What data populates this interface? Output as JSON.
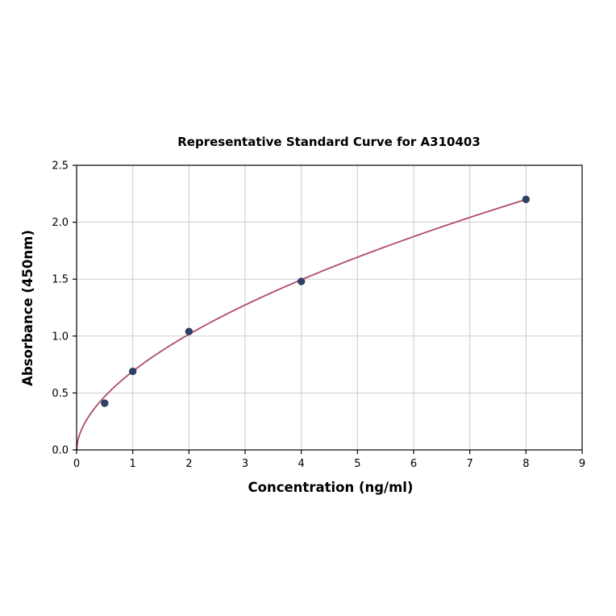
{
  "page": {
    "background": "#ffffff"
  },
  "chart_data": {
    "type": "scatter",
    "title": "Representative Standard Curve for A310403",
    "xlabel": "Concentration (ng/ml)",
    "ylabel": "Absorbance (450nm)",
    "xlim": [
      0,
      9
    ],
    "ylim": [
      0,
      2.5
    ],
    "x_ticks": [
      0,
      1,
      2,
      3,
      4,
      5,
      6,
      7,
      8,
      9
    ],
    "x_tick_labels": [
      "0",
      "1",
      "2",
      "3",
      "4",
      "5",
      "6",
      "7",
      "8",
      "9"
    ],
    "y_ticks": [
      0,
      0.5,
      1.0,
      1.5,
      2.0,
      2.5
    ],
    "y_tick_labels": [
      "0.0",
      "0.5",
      "1.0",
      "1.5",
      "2.0",
      "2.5"
    ],
    "grid": true,
    "legend_position": "none",
    "series": [
      {
        "name": "standards",
        "x": [
          0.5,
          1,
          2,
          4,
          8
        ],
        "y": [
          0.41,
          0.69,
          1.04,
          1.48,
          2.2
        ]
      }
    ],
    "fit_curve": {
      "model": "power",
      "a": 0.69,
      "b": 0.5575,
      "x_start": 0,
      "x_end": 8.05
    },
    "colors": {
      "curve": "#b04a6b",
      "points": "#2f3f66",
      "grid": "#c8c8c8",
      "axis": "#000000",
      "text": "#000000"
    }
  }
}
